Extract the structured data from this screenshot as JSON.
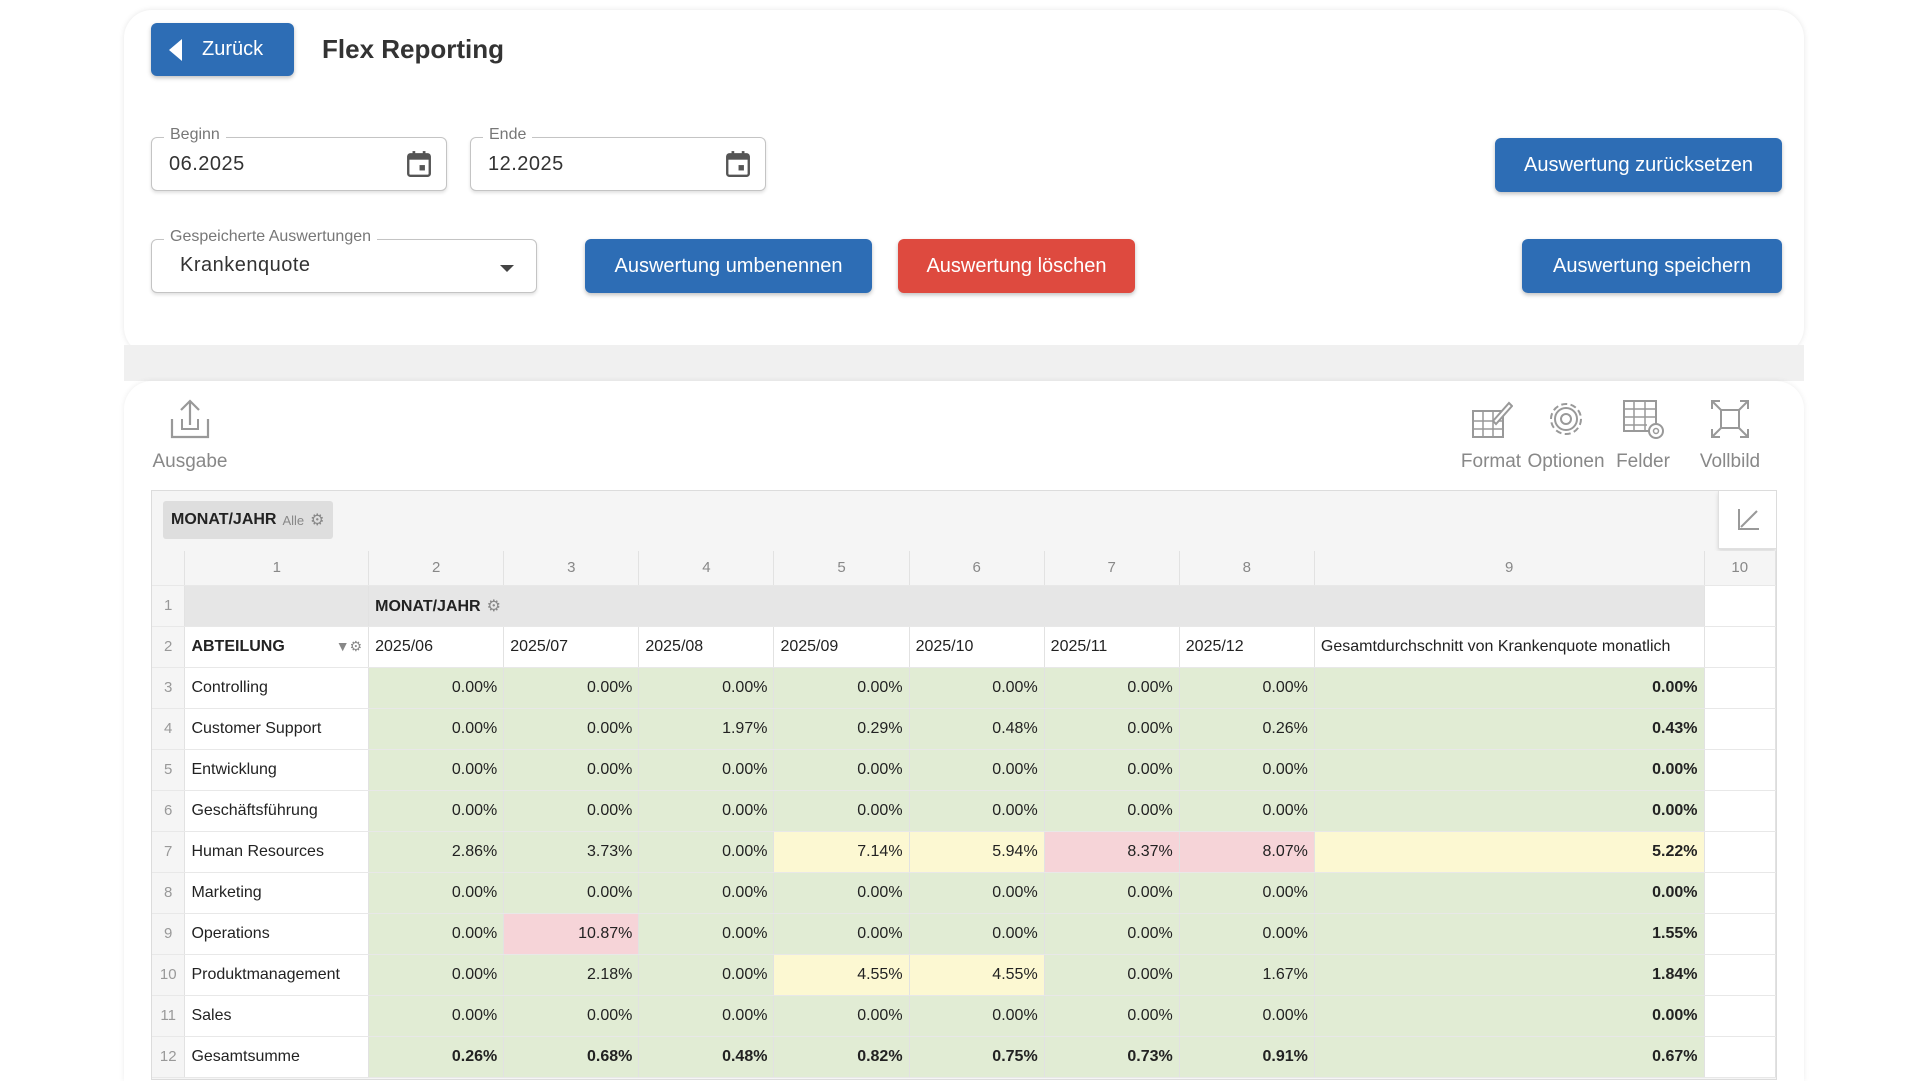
{
  "header": {
    "back_label": "Zurück",
    "title": "Flex Reporting"
  },
  "filters": {
    "begin": {
      "label": "Beginn",
      "value": "06.2025"
    },
    "end": {
      "label": "Ende",
      "value": "12.2025"
    },
    "saved": {
      "label": "Gespeicherte Auswertungen",
      "value": "Krankenquote"
    }
  },
  "actions": {
    "reset": "Auswertung zurücksetzen",
    "rename": "Auswertung umbenennen",
    "delete": "Auswertung löschen",
    "save": "Auswertung speichern"
  },
  "toolbar": {
    "output": "Ausgabe",
    "format": "Format",
    "options": "Optionen",
    "fields": "Felder",
    "fullscreen": "Vollbild"
  },
  "pivot": {
    "filter_field": "MONAT/JAHR",
    "filter_value": "Alle",
    "col_numbers": [
      "1",
      "2",
      "3",
      "4",
      "5",
      "6",
      "7",
      "8",
      "9",
      "10"
    ],
    "column_field": "MONAT/JAHR",
    "row_field": "ABTEILUNG",
    "months": [
      "2025/06",
      "2025/07",
      "2025/08",
      "2025/09",
      "2025/10",
      "2025/11",
      "2025/12"
    ],
    "avg_header": "Gesamtdurchschnitt von Krankenquote monatlich",
    "rows": [
      {
        "n": "3",
        "name": "Controlling",
        "vals": [
          "0.00%",
          "0.00%",
          "0.00%",
          "0.00%",
          "0.00%",
          "0.00%",
          "0.00%"
        ],
        "avg": "0.00%",
        "c": [
          "g",
          "g",
          "g",
          "g",
          "g",
          "g",
          "g",
          "g"
        ]
      },
      {
        "n": "4",
        "name": "Customer Support",
        "vals": [
          "0.00%",
          "0.00%",
          "1.97%",
          "0.29%",
          "0.48%",
          "0.00%",
          "0.26%"
        ],
        "avg": "0.43%",
        "c": [
          "g",
          "g",
          "g",
          "g",
          "g",
          "g",
          "g",
          "g"
        ]
      },
      {
        "n": "5",
        "name": "Entwicklung",
        "vals": [
          "0.00%",
          "0.00%",
          "0.00%",
          "0.00%",
          "0.00%",
          "0.00%",
          "0.00%"
        ],
        "avg": "0.00%",
        "c": [
          "g",
          "g",
          "g",
          "g",
          "g",
          "g",
          "g",
          "g"
        ]
      },
      {
        "n": "6",
        "name": "Geschäftsführung",
        "vals": [
          "0.00%",
          "0.00%",
          "0.00%",
          "0.00%",
          "0.00%",
          "0.00%",
          "0.00%"
        ],
        "avg": "0.00%",
        "c": [
          "g",
          "g",
          "g",
          "g",
          "g",
          "g",
          "g",
          "g"
        ]
      },
      {
        "n": "7",
        "name": "Human Resources",
        "vals": [
          "2.86%",
          "3.73%",
          "0.00%",
          "7.14%",
          "5.94%",
          "8.37%",
          "8.07%"
        ],
        "avg": "5.22%",
        "c": [
          "g",
          "g",
          "g",
          "y",
          "y",
          "r",
          "r",
          "y"
        ]
      },
      {
        "n": "8",
        "name": "Marketing",
        "vals": [
          "0.00%",
          "0.00%",
          "0.00%",
          "0.00%",
          "0.00%",
          "0.00%",
          "0.00%"
        ],
        "avg": "0.00%",
        "c": [
          "g",
          "g",
          "g",
          "g",
          "g",
          "g",
          "g",
          "g"
        ]
      },
      {
        "n": "9",
        "name": "Operations",
        "vals": [
          "0.00%",
          "10.87%",
          "0.00%",
          "0.00%",
          "0.00%",
          "0.00%",
          "0.00%"
        ],
        "avg": "1.55%",
        "c": [
          "g",
          "r",
          "g",
          "g",
          "g",
          "g",
          "g",
          "g"
        ]
      },
      {
        "n": "10",
        "name": "Produktmanagement",
        "vals": [
          "0.00%",
          "2.18%",
          "0.00%",
          "4.55%",
          "4.55%",
          "0.00%",
          "1.67%"
        ],
        "avg": "1.84%",
        "c": [
          "g",
          "g",
          "g",
          "y",
          "y",
          "g",
          "g",
          "g"
        ]
      },
      {
        "n": "11",
        "name": "Sales",
        "vals": [
          "0.00%",
          "0.00%",
          "0.00%",
          "0.00%",
          "0.00%",
          "0.00%",
          "0.00%"
        ],
        "avg": "0.00%",
        "c": [
          "g",
          "g",
          "g",
          "g",
          "g",
          "g",
          "g",
          "g"
        ]
      },
      {
        "n": "12",
        "name": "Gesamtsumme",
        "vals": [
          "0.26%",
          "0.68%",
          "0.48%",
          "0.82%",
          "0.75%",
          "0.73%",
          "0.91%"
        ],
        "avg": "0.67%",
        "c": [
          "g",
          "g",
          "g",
          "g",
          "g",
          "g",
          "g",
          "g"
        ],
        "total": true
      }
    ]
  },
  "colors": {
    "primary": "#2d6db5",
    "danger": "#de4a3f",
    "cell_green": "#e1ecd4",
    "cell_yellow": "#fcf8d2",
    "cell_red": "#f6d4d8"
  }
}
